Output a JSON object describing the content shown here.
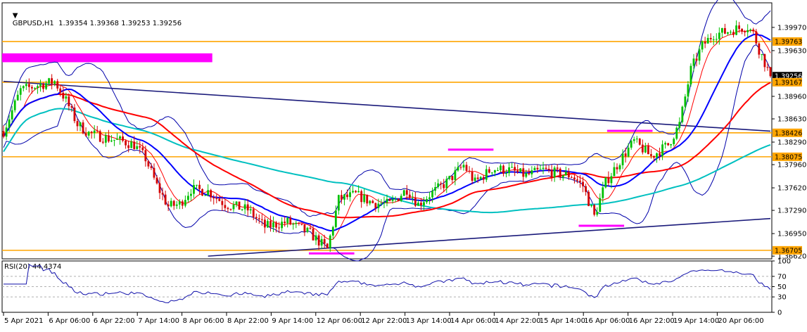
{
  "window": {
    "symbol_line": "GBPUSD,H1  1.39354 1.39368 1.39253 1.39256",
    "rsi_title": "RSI(20) 44.4374"
  },
  "chart_data": {
    "type": "candlestick",
    "symbol": "GBPUSD",
    "timeframe": "H1",
    "ohlc_header": {
      "open": 1.39354,
      "high": 1.39368,
      "low": 1.39253,
      "close": 1.39256
    },
    "price_ylim": [
      1.3658,
      1.4033
    ],
    "price_ticks": [
      "1.39970",
      "1.39630",
      "1.38960",
      "1.38630",
      "1.38290",
      "1.37960",
      "1.37620",
      "1.37290",
      "1.36950",
      "1.36620"
    ],
    "price_tick_values": [
      1.3997,
      1.3963,
      1.3896,
      1.3863,
      1.3829,
      1.3796,
      1.3762,
      1.3729,
      1.3695,
      1.3662
    ],
    "x_ticks": [
      "5 Apr 2021",
      "6 Apr 06:00",
      "6 Apr 22:00",
      "7 Apr 14:00",
      "8 Apr 06:00",
      "8 Apr 22:00",
      "9 Apr 14:00",
      "12 Apr 06:00",
      "12 Apr 22:00",
      "13 Apr 14:00",
      "14 Apr 06:00",
      "14 Apr 22:00",
      "15 Apr 14:00",
      "16 Apr 06:00",
      "16 Apr 22:00",
      "19 Apr 14:00",
      "20 Apr 06:00"
    ],
    "horizontal_levels": [
      {
        "price": 1.39763,
        "label": "1.39763",
        "color": "#ffa500"
      },
      {
        "price": 1.39256,
        "label": "1.39256",
        "color": "#000000",
        "current": true
      },
      {
        "price": 1.39167,
        "label": "1.39167",
        "color": "#ffa500"
      },
      {
        "price": 1.38426,
        "label": "1.38426",
        "color": "#ffa500"
      },
      {
        "price": 1.38075,
        "label": "1.38075",
        "color": "#ffa500"
      },
      {
        "price": 1.36705,
        "label": "1.36705",
        "color": "#ffa500"
      }
    ],
    "trendlines": [
      {
        "color": "#1a1a7a",
        "from": {
          "bar": 0,
          "price": 1.3918
        },
        "to": {
          "bar": 270,
          "price": 1.3845
        }
      },
      {
        "color": "#1a1a7a",
        "from": {
          "bar": 72,
          "price": 1.3662
        },
        "to": {
          "bar": 270,
          "price": 1.3717
        }
      }
    ],
    "zones": [
      {
        "color": "#ff00ff",
        "bar_from": 0,
        "bar_to": 74,
        "price_from": 1.3946,
        "price_to": 1.3959
      },
      {
        "color": "#ff00ff",
        "bar_from": 108,
        "bar_to": 124,
        "price_from": 1.3665,
        "price_to": 1.36675
      },
      {
        "color": "#ff00ff",
        "bar_from": 157,
        "bar_to": 173,
        "price_from": 1.3817,
        "price_to": 1.38195
      },
      {
        "color": "#ff00ff",
        "bar_from": 213,
        "bar_to": 229,
        "price_from": 1.38445,
        "price_to": 1.3847
      },
      {
        "color": "#ff00ff",
        "bar_from": 203,
        "bar_to": 219,
        "price_from": 1.37055,
        "price_to": 1.3708
      }
    ],
    "close_path": [
      [
        0,
        1.3845
      ],
      [
        6,
        1.3905
      ],
      [
        12,
        1.3912
      ],
      [
        18,
        1.3918
      ],
      [
        22,
        1.389
      ],
      [
        26,
        1.3855
      ],
      [
        30,
        1.3842
      ],
      [
        36,
        1.3835
      ],
      [
        42,
        1.383
      ],
      [
        46,
        1.3825
      ],
      [
        50,
        1.3805
      ],
      [
        54,
        1.3765
      ],
      [
        58,
        1.3735
      ],
      [
        62,
        1.3738
      ],
      [
        66,
        1.376
      ],
      [
        72,
        1.3757
      ],
      [
        78,
        1.3738
      ],
      [
        86,
        1.373
      ],
      [
        92,
        1.3705
      ],
      [
        100,
        1.3712
      ],
      [
        108,
        1.3695
      ],
      [
        114,
        1.3672
      ],
      [
        118,
        1.3745
      ],
      [
        124,
        1.3752
      ],
      [
        130,
        1.374
      ],
      [
        136,
        1.3738
      ],
      [
        142,
        1.376
      ],
      [
        146,
        1.3738
      ],
      [
        150,
        1.3752
      ],
      [
        156,
        1.377
      ],
      [
        162,
        1.3795
      ],
      [
        166,
        1.377
      ],
      [
        172,
        1.379
      ],
      [
        178,
        1.3788
      ],
      [
        184,
        1.378
      ],
      [
        190,
        1.3788
      ],
      [
        196,
        1.3782
      ],
      [
        200,
        1.378
      ],
      [
        204,
        1.3765
      ],
      [
        208,
        1.372
      ],
      [
        212,
        1.377
      ],
      [
        218,
        1.3808
      ],
      [
        222,
        1.383
      ],
      [
        228,
        1.3808
      ],
      [
        234,
        1.3825
      ],
      [
        238,
        1.3855
      ],
      [
        242,
        1.3935
      ],
      [
        246,
        1.397
      ],
      [
        250,
        1.3987
      ],
      [
        254,
        1.399
      ],
      [
        258,
        1.3995
      ],
      [
        262,
        1.3998
      ],
      [
        264,
        1.3988
      ],
      [
        266,
        1.3965
      ],
      [
        270,
        1.3926
      ]
    ],
    "rsi_ylim": [
      0,
      100
    ],
    "rsi_ticks": [
      "100",
      "70",
      "50",
      "30",
      "0"
    ],
    "rsi_tick_values": [
      100,
      70,
      50,
      30,
      0
    ],
    "rsi_value": 44.4374,
    "colors": {
      "bull": "#00c000",
      "bear": "#d40000",
      "ma_fast": "#ff0000",
      "ma_mid": "#0000ff",
      "ma_slow": "#ff0000",
      "ma_long": "#00c0c0",
      "bands": "#0000aa",
      "rsi": "#1010aa"
    }
  }
}
